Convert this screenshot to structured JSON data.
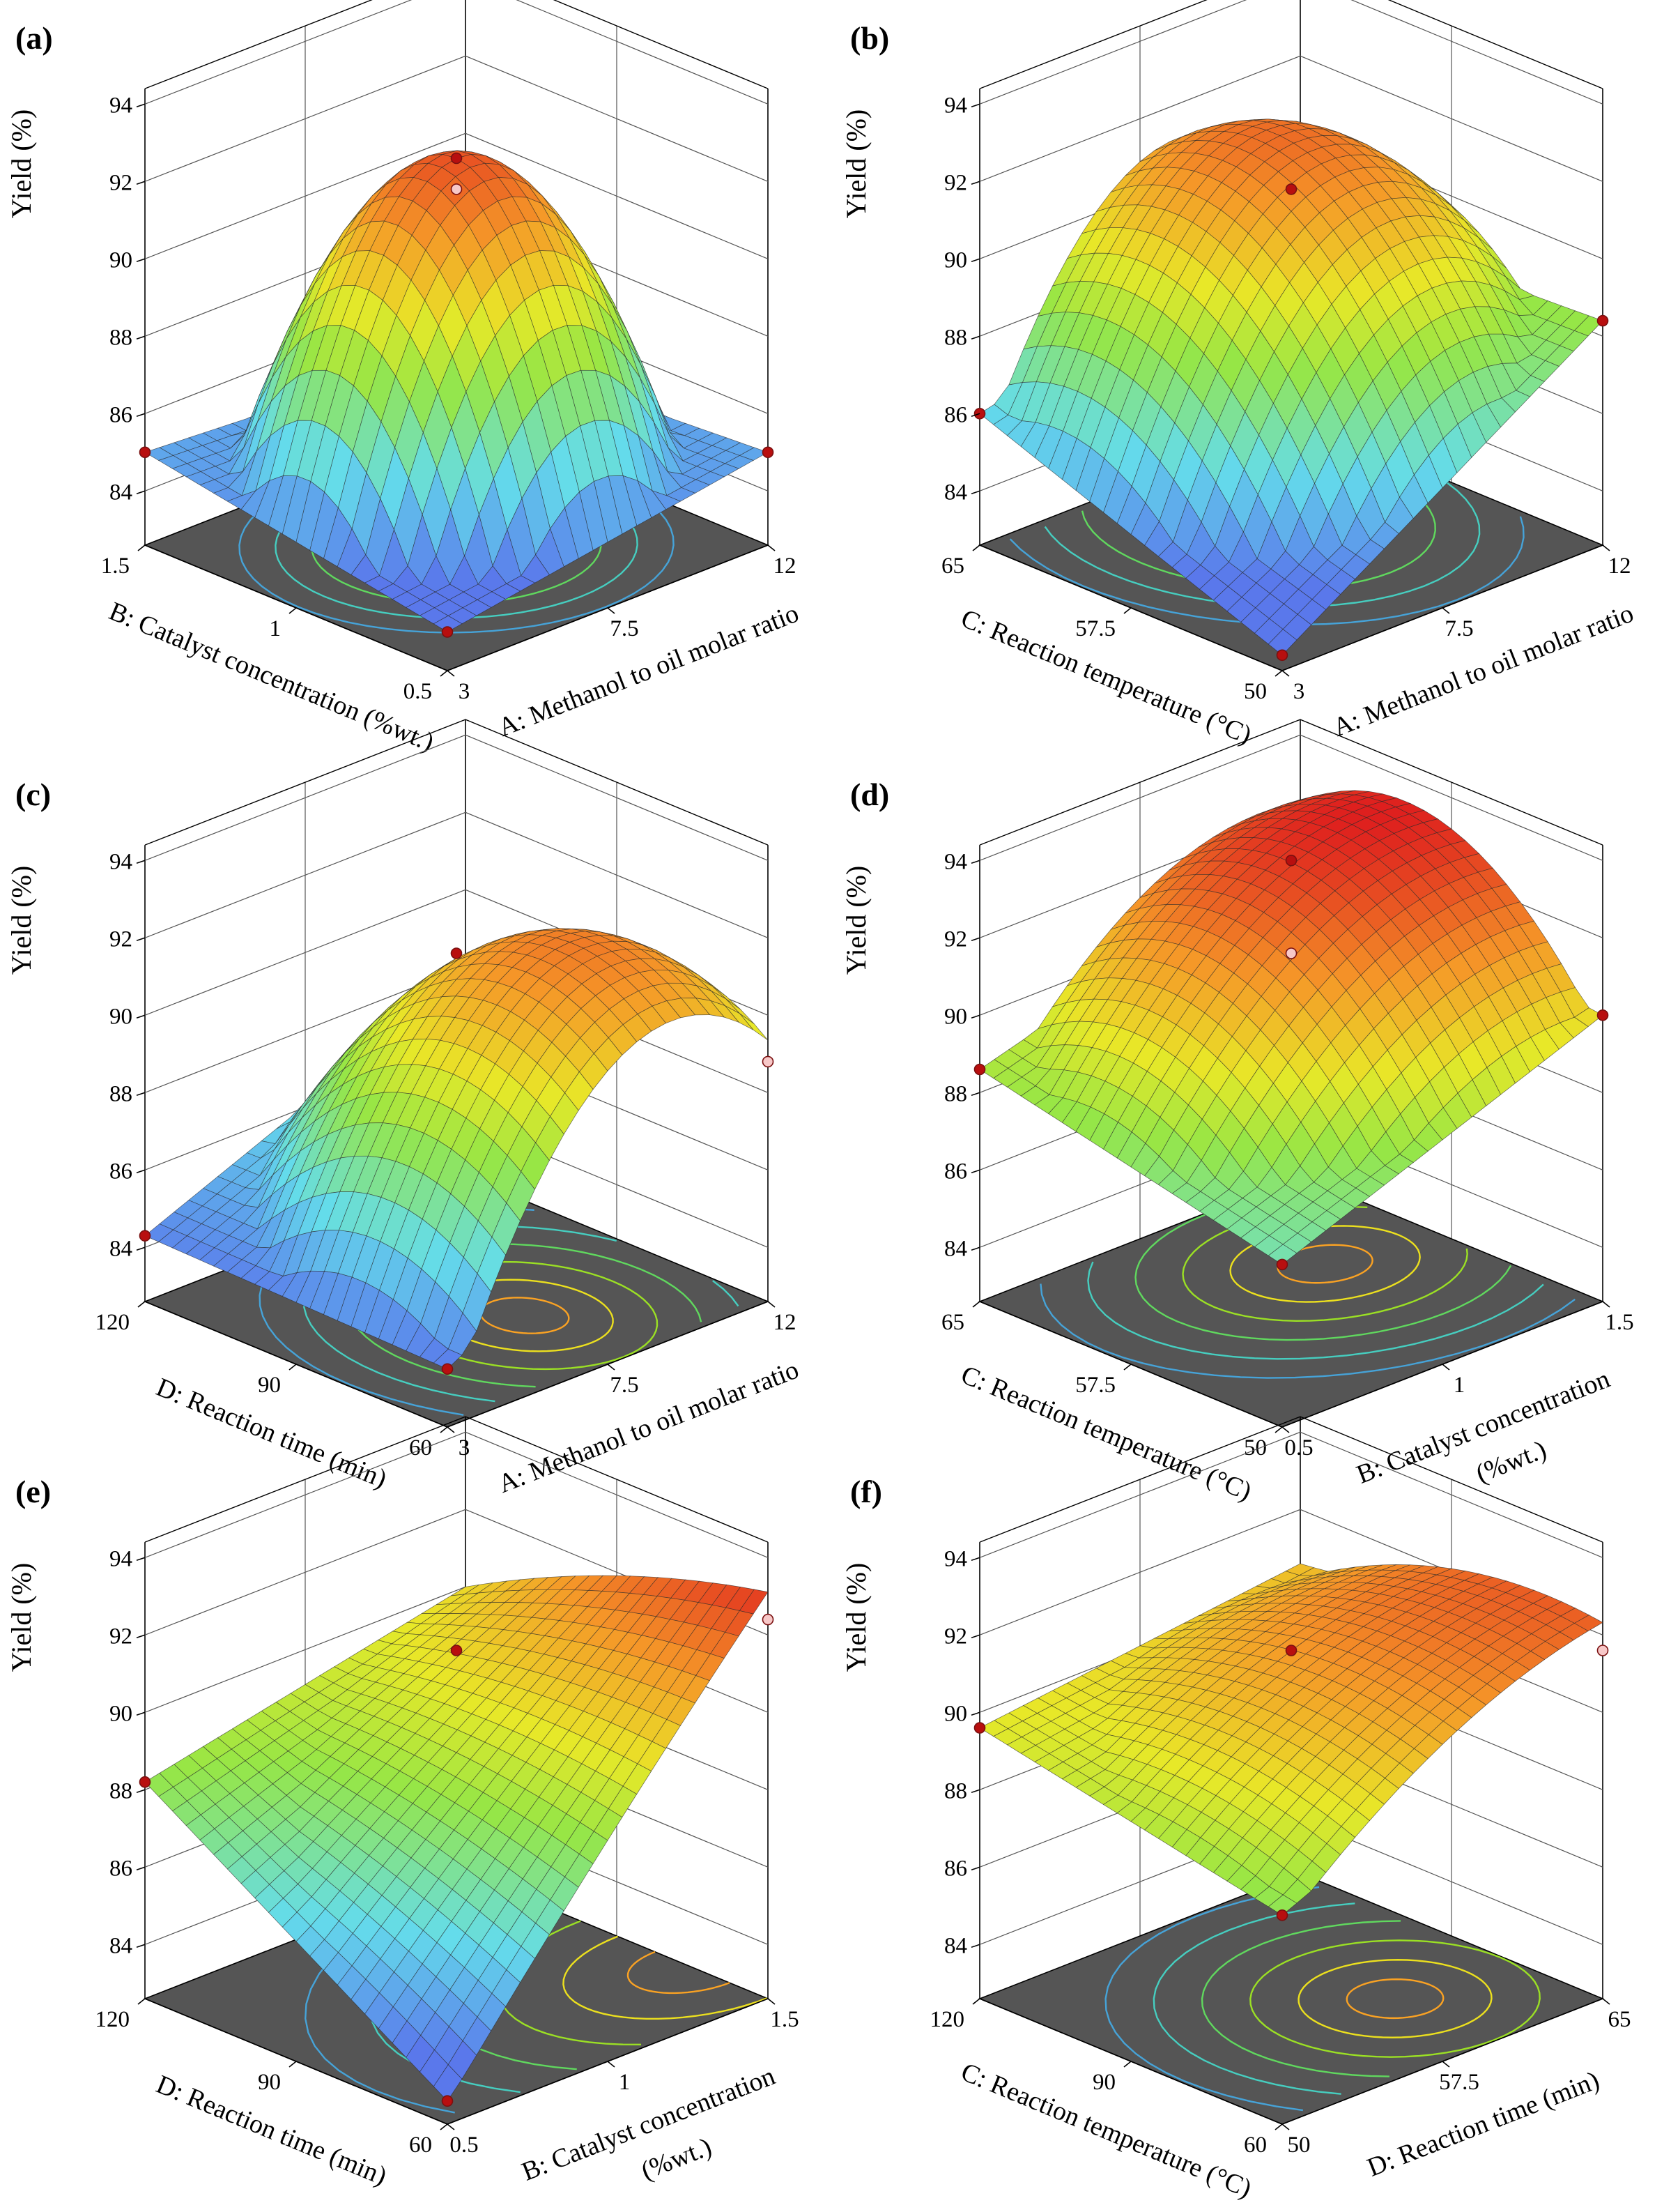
{
  "figure": {
    "type": "3d-response-surface",
    "panels": [
      {
        "label": "(a)",
        "zlabel": "Yield (%)",
        "zticks": [
          "84",
          "86",
          "88",
          "90",
          "92",
          "94"
        ],
        "x_axis": {
          "title": "A: Methanol to oil molar ratio",
          "ticks": [
            "3",
            "7.5",
            "12"
          ]
        },
        "y_axis": {
          "title": "B: Catalyst concentration (%wt.)",
          "ticks": [
            "0.5",
            "1",
            "1.5"
          ]
        }
      },
      {
        "label": "(b)",
        "zlabel": "Yield (%)",
        "zticks": [
          "84",
          "86",
          "88",
          "90",
          "92",
          "94"
        ],
        "x_axis": {
          "title": "A: Methanol to oil molar ratio",
          "ticks": [
            "3",
            "7.5",
            "12"
          ]
        },
        "y_axis": {
          "title": "C: Reaction temperature (°C)",
          "ticks": [
            "50",
            "57.5",
            "65"
          ]
        }
      },
      {
        "label": "(c)",
        "zlabel": "Yield (%)",
        "zticks": [
          "84",
          "86",
          "88",
          "90",
          "92",
          "94"
        ],
        "x_axis": {
          "title": "A: Methanol to oil molar ratio",
          "ticks": [
            "3",
            "7.5",
            "12"
          ]
        },
        "y_axis": {
          "title": "D: Reaction time (min)",
          "ticks": [
            "60",
            "90",
            "120"
          ]
        }
      },
      {
        "label": "(d)",
        "zlabel": "Yield (%)",
        "zticks": [
          "84",
          "86",
          "88",
          "90",
          "92",
          "94"
        ],
        "x_axis": {
          "title": "B: Catalyst concentration",
          "title2": "(%wt.)",
          "ticks": [
            "0.5",
            "1",
            "1.5"
          ]
        },
        "y_axis": {
          "title": "C: Reaction temperature (°C)",
          "ticks": [
            "50",
            "57.5",
            "65"
          ]
        }
      },
      {
        "label": "(e)",
        "zlabel": "Yield (%)",
        "zticks": [
          "84",
          "86",
          "88",
          "90",
          "92",
          "94"
        ],
        "x_axis": {
          "title": "B: Catalyst concentration",
          "title2": "(%wt.)",
          "ticks": [
            "0.5",
            "1",
            "1.5"
          ]
        },
        "y_axis": {
          "title": "D: Reaction time (min)",
          "ticks": [
            "60",
            "90",
            "120"
          ]
        }
      },
      {
        "label": "(f)",
        "zlabel": "Yield (%)",
        "zticks": [
          "84",
          "86",
          "88",
          "90",
          "92",
          "94"
        ],
        "x_axis": {
          "title": "D: Reaction time (min)",
          "ticks": [
            "50",
            "57.5",
            "65"
          ]
        },
        "y_axis": {
          "title": "C: Reaction temperature (°C)",
          "ticks": [
            "60",
            "90",
            "120"
          ]
        }
      }
    ]
  },
  "chart_data": [
    {
      "type": "surface",
      "title": "(a)",
      "xlabel": "A: Methanol to oil molar ratio",
      "xlim": [
        3,
        12
      ],
      "ylabel": "B: Catalyst concentration (%wt.)",
      "ylim": [
        0.5,
        1.5
      ],
      "zlabel": "Yield (%)",
      "zlim": [
        84,
        94
      ],
      "corners": {
        "front": 83.6,
        "right": 85.0,
        "left": 85.0,
        "back": 84.5
      },
      "peak": {
        "x": 7.5,
        "y": 1.0,
        "z": 92.6
      },
      "design_points": [
        {
          "x": 3,
          "y": 1.5,
          "z": 85.0
        },
        {
          "x": 12,
          "y": 0.5,
          "z": 85.0
        },
        {
          "x": 3,
          "y": 0.5,
          "z": 83.6
        },
        {
          "x": 7.5,
          "y": 1.0,
          "z": 92.6
        },
        {
          "x": 7.5,
          "y": 1.0,
          "z": 91.8
        }
      ]
    },
    {
      "type": "surface",
      "title": "(b)",
      "xlabel": "A: Methanol to oil molar ratio",
      "xlim": [
        3,
        12
      ],
      "ylabel": "C: Reaction temperature (°C)",
      "ylim": [
        50,
        65
      ],
      "zlabel": "Yield (%)",
      "zlim": [
        84,
        94
      ],
      "corners": {
        "front": 83.0,
        "right": 88.4,
        "left": 86.0,
        "back": 88.0
      },
      "peak": {
        "x": 8.0,
        "y": 60,
        "z": 92.0
      },
      "design_points": [
        {
          "x": 3,
          "y": 65,
          "z": 86.0
        },
        {
          "x": 12,
          "y": 50,
          "z": 88.4
        },
        {
          "x": 3,
          "y": 50,
          "z": 83.0
        },
        {
          "x": 7.5,
          "y": 57.5,
          "z": 91.8
        }
      ]
    },
    {
      "type": "surface",
      "title": "(c)",
      "xlabel": "A: Methanol to oil molar ratio",
      "xlim": [
        3,
        12
      ],
      "ylabel": "D: Reaction time (min)",
      "ylim": [
        60,
        120
      ],
      "zlabel": "Yield (%)",
      "zlim": [
        84,
        94
      ],
      "corners": {
        "front": 84.1,
        "right": 88.8,
        "left": 84.3,
        "back": 87.8
      },
      "peak": {
        "x": 8.0,
        "y": 80,
        "z": 91.6
      },
      "design_points": [
        {
          "x": 3,
          "y": 120,
          "z": 84.3
        },
        {
          "x": 12,
          "y": 60,
          "z": 88.8
        },
        {
          "x": 3,
          "y": 60,
          "z": 84.1
        },
        {
          "x": 7.5,
          "y": 90,
          "z": 91.6
        }
      ]
    },
    {
      "type": "surface",
      "title": "(d)",
      "xlabel": "B: Catalyst concentration (%wt.)",
      "xlim": [
        0.5,
        1.5
      ],
      "ylabel": "C: Reaction temperature (°C)",
      "ylim": [
        50,
        65
      ],
      "zlabel": "Yield (%)",
      "zlim": [
        84,
        94
      ],
      "corners": {
        "front": 86.8,
        "right": 90.0,
        "left": 88.6,
        "back": 91.0
      },
      "peak": {
        "x": 1.2,
        "y": 59,
        "z": 93.2
      },
      "design_points": [
        {
          "x": 0.5,
          "y": 65,
          "z": 88.6
        },
        {
          "x": 1.5,
          "y": 50,
          "z": 90.0
        },
        {
          "x": 0.5,
          "y": 50,
          "z": 86.8
        },
        {
          "x": 1.0,
          "y": 57.5,
          "z": 91.6
        },
        {
          "x": 1.0,
          "y": 57.5,
          "z": 94.0
        }
      ]
    },
    {
      "type": "surface",
      "title": "(e)",
      "xlabel": "B: Catalyst concentration (%wt.)",
      "xlim": [
        0.5,
        1.5
      ],
      "ylabel": "D: Reaction time (min)",
      "ylim": [
        60,
        120
      ],
      "zlabel": "Yield (%)",
      "zlim": [
        84,
        94
      ],
      "corners": {
        "front": 83.2,
        "right": 92.4,
        "left": 88.2,
        "back": 90.0
      },
      "peak": {
        "x": 1.5,
        "y": 75,
        "z": 92.6
      },
      "design_points": [
        {
          "x": 0.5,
          "y": 120,
          "z": 88.2
        },
        {
          "x": 1.5,
          "y": 60,
          "z": 92.4
        },
        {
          "x": 0.5,
          "y": 60,
          "z": 83.2
        },
        {
          "x": 1.0,
          "y": 90,
          "z": 91.6
        }
      ]
    },
    {
      "type": "surface",
      "title": "(f)",
      "xlabel": "D: Reaction time (min)",
      "xlim": [
        50,
        65
      ],
      "ylabel": "C: Reaction temperature (°C)",
      "ylim": [
        60,
        120
      ],
      "zlabel": "Yield (%)",
      "zlim": [
        84,
        94
      ],
      "corners": {
        "front": 88.0,
        "right": 91.6,
        "left": 89.6,
        "back": 90.6
      },
      "peak": {
        "x": 60,
        "y": 80,
        "z": 91.8
      },
      "design_points": [
        {
          "x": 50,
          "y": 120,
          "z": 89.6
        },
        {
          "x": 65,
          "y": 60,
          "z": 91.6
        },
        {
          "x": 50,
          "y": 60,
          "z": 88.0
        },
        {
          "x": 57.5,
          "y": 90,
          "z": 91.6
        }
      ]
    }
  ]
}
